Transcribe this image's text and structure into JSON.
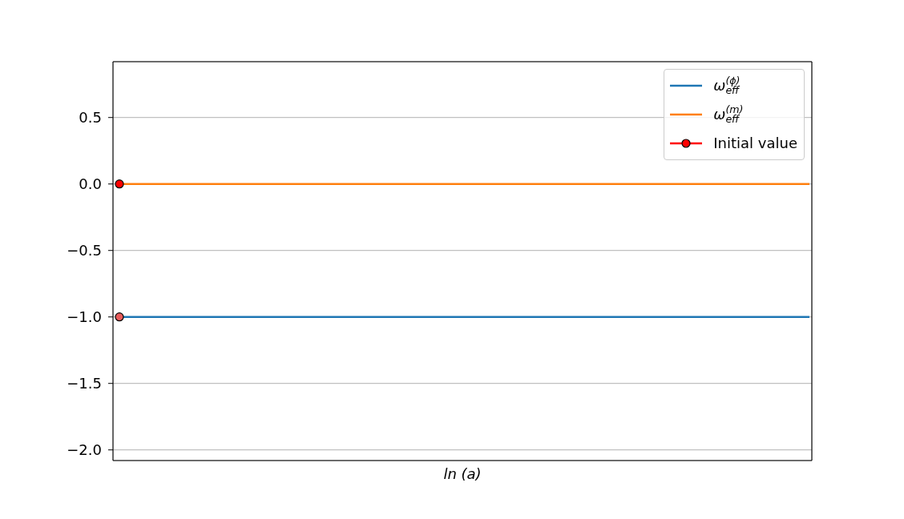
{
  "chart_data": {
    "type": "line",
    "xlabel": "ln (a)",
    "categories": [
      null,
      null,
      null,
      null,
      null,
      null,
      null,
      null,
      null,
      null,
      null
    ],
    "series": [
      {
        "name": "ω$_{eff}$$^{(ϕ)}$",
        "color": "#1f77b4",
        "values": [
          -1,
          -1,
          -1,
          -1,
          -1,
          -1,
          -1,
          -1,
          -1,
          -1,
          -1
        ]
      },
      {
        "name": "ω$_{eff}$$^{(m)}$",
        "color": "#ff7f0e",
        "values": [
          0,
          0,
          0,
          0,
          0,
          0,
          0,
          0,
          0,
          0,
          0
        ]
      },
      {
        "name": "Initial value",
        "type": "scatter",
        "marker": "circle",
        "color": "#ff0000",
        "values": [
          0,
          null,
          null,
          null,
          null,
          null,
          null,
          null,
          null,
          null,
          null
        ]
      },
      {
        "type": "scatter",
        "marker": "circle",
        "color": "#e85a5a",
        "values": [
          -1,
          null,
          null,
          null,
          null,
          null,
          null,
          null,
          null,
          null,
          null
        ]
      }
    ],
    "ylim": [
      -2.08,
      0.92
    ],
    "yticks": [
      {
        "value": -2,
        "label": "−2.0"
      },
      {
        "value": -1.5,
        "label": "−1.5"
      },
      {
        "value": -1,
        "label": "−1.0"
      },
      {
        "value": -0.5,
        "label": "−0.5"
      },
      {
        "value": 0,
        "label": "0.0"
      },
      0.5
    ],
    "grid": "y",
    "legend": "top right",
    "tick_labels": "y"
  }
}
